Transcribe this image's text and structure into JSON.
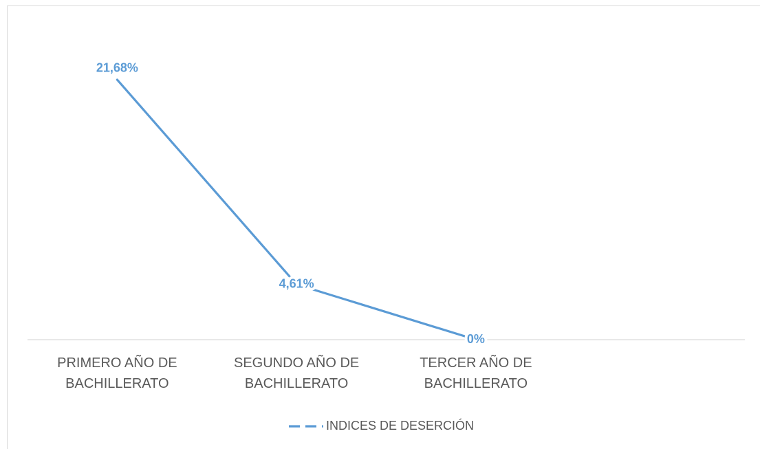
{
  "chart_data": {
    "type": "line",
    "categories": [
      "PRIMERO AÑO DE BACHILLERATO",
      "SEGUNDO AÑO DE BACHILLERATO",
      "TERCER AÑO DE BACHILLERATO",
      null
    ],
    "series": [
      {
        "name": "INDICES DE DESERCIÓN",
        "color": "#5b9bd5",
        "values": [
          21.68,
          4.61,
          0,
          null
        ],
        "value_labels": [
          "21,68%",
          "4,61%",
          "0%",
          null
        ]
      }
    ],
    "ylim": [
      0,
      25
    ],
    "legend": "bottom"
  }
}
